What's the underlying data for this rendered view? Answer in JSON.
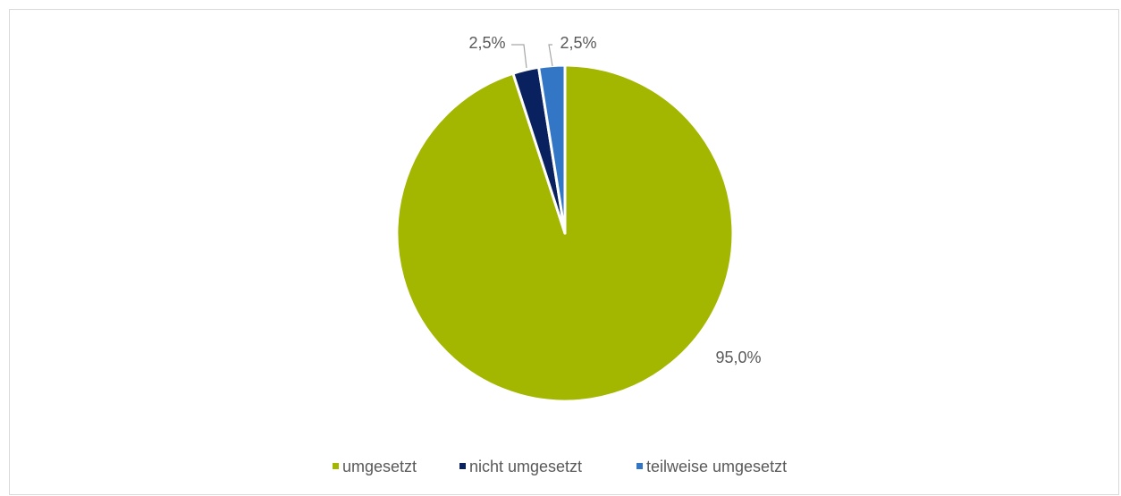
{
  "chart_data": {
    "type": "pie",
    "title": "",
    "categories": [
      "umgesetzt",
      "nicht umgesetzt",
      "teilweise umgesetzt"
    ],
    "values": [
      95.0,
      2.5,
      2.5
    ],
    "data_labels": [
      "95,0%",
      "2,5%",
      "2,5%"
    ],
    "colors": [
      "#a3b600",
      "#0a2160",
      "#3476c6"
    ],
    "legend_position": "bottom",
    "start_angle_deg": 0,
    "direction": "clockwise"
  }
}
